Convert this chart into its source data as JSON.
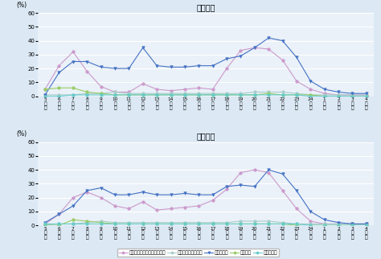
{
  "title_top": "（平日）",
  "title_bottom": "（休日）",
  "x_labels": [
    "5時台",
    "6時台",
    "7時台",
    "8時台",
    "9時台",
    "10時台",
    "11時台",
    "12時台",
    "13時台",
    "14時台",
    "15時台",
    "16時台",
    "17時台",
    "18時台",
    "19時台",
    "20時台",
    "21時台",
    "22時台",
    "23時台",
    "24時台",
    "1時台",
    "2時台",
    "3時台",
    "4時台"
  ],
  "x_nums": [
    "5",
    "6",
    "7",
    "8",
    "9",
    "10",
    "11",
    "12",
    "13",
    "14",
    "15",
    "16",
    "17",
    "18",
    "19",
    "20",
    "21",
    "22",
    "23",
    "24",
    "1",
    "2",
    "3",
    "4"
  ],
  "weekday": {
    "tv_realtime": [
      5,
      22,
      32,
      18,
      7,
      3,
      3,
      9,
      5,
      4,
      5,
      6,
      5,
      20,
      33,
      35,
      34,
      26,
      11,
      5,
      2,
      1,
      1,
      1
    ],
    "tv_recorded": [
      1,
      1,
      1,
      2,
      2,
      3,
      2,
      2,
      2,
      2,
      2,
      2,
      2,
      2,
      2,
      3,
      3,
      3,
      2,
      1,
      1,
      1,
      1,
      1
    ],
    "internet": [
      1,
      17,
      25,
      25,
      21,
      20,
      20,
      35,
      22,
      21,
      21,
      22,
      22,
      27,
      29,
      35,
      42,
      40,
      28,
      11,
      5,
      3,
      2,
      2
    ],
    "newspaper": [
      5,
      6,
      6,
      3,
      2,
      1,
      1,
      1,
      1,
      1,
      1,
      1,
      1,
      1,
      1,
      1,
      2,
      1,
      1,
      1,
      0,
      0,
      0,
      0
    ],
    "radio": [
      0,
      0,
      1,
      1,
      1,
      1,
      1,
      1,
      1,
      1,
      1,
      1,
      1,
      1,
      1,
      1,
      1,
      1,
      1,
      0,
      0,
      0,
      0,
      0
    ]
  },
  "holiday": {
    "tv_realtime": [
      1,
      8,
      20,
      24,
      20,
      14,
      12,
      17,
      11,
      12,
      13,
      14,
      18,
      26,
      38,
      40,
      38,
      25,
      12,
      3,
      1,
      1,
      1,
      1
    ],
    "tv_recorded": [
      0,
      1,
      1,
      2,
      3,
      2,
      2,
      2,
      2,
      2,
      2,
      2,
      2,
      2,
      3,
      3,
      3,
      2,
      1,
      1,
      1,
      1,
      1,
      1
    ],
    "internet": [
      2,
      8,
      14,
      25,
      27,
      22,
      22,
      24,
      22,
      22,
      23,
      22,
      22,
      28,
      29,
      28,
      40,
      37,
      25,
      10,
      4,
      2,
      1,
      1
    ],
    "newspaper": [
      0,
      0,
      4,
      3,
      2,
      1,
      1,
      1,
      1,
      1,
      1,
      1,
      1,
      1,
      1,
      1,
      1,
      1,
      0,
      0,
      0,
      0,
      0,
      0
    ],
    "radio": [
      1,
      1,
      1,
      1,
      1,
      1,
      1,
      1,
      1,
      1,
      1,
      1,
      1,
      1,
      1,
      1,
      1,
      1,
      1,
      0,
      0,
      0,
      0,
      0
    ]
  },
  "colors": {
    "tv_realtime": "#cc99cc",
    "tv_recorded": "#aacccc",
    "internet": "#4472c4",
    "newspaper": "#99cc66",
    "radio": "#66cccc"
  },
  "markers": {
    "tv_realtime": "o",
    "tv_recorded": "o",
    "internet": "v",
    "newspaper": "o",
    "radio": "o"
  },
  "legend_labels": [
    "テレビ（リアルタイム）視聴",
    "テレビ（録画）視聴",
    "ネット利用",
    "新聞閲読",
    "ラジオ聴取"
  ],
  "ylim": [
    0,
    60
  ],
  "yticks": [
    0,
    10,
    20,
    30,
    40,
    50,
    60
  ],
  "bg_color": "#dce9f5",
  "plot_bg_color": "#eaf1f8",
  "grid_color": "#ffffff",
  "ylabel": "(%)"
}
